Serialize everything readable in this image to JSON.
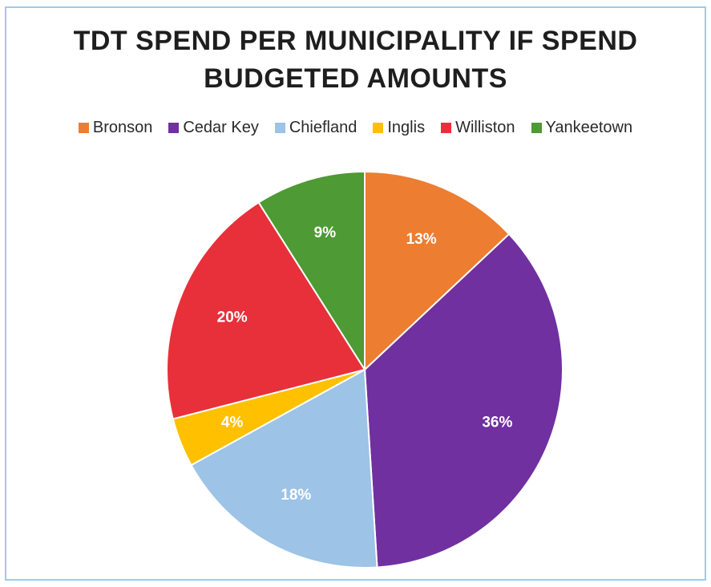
{
  "chart_data": {
    "type": "pie",
    "title_lines": [
      "TDT SPEND PER MUNICIPALITY IF SPEND",
      "BUDGETED AMOUNTS"
    ],
    "legend_position": "top",
    "slices": [
      {
        "label": "Bronson",
        "value": 13,
        "value_label": "13%",
        "color": "#ed7d31"
      },
      {
        "label": "Cedar Key",
        "value": 36,
        "value_label": "36%",
        "color": "#7030a0"
      },
      {
        "label": "Chiefland",
        "value": 18,
        "value_label": "18%",
        "color": "#9dc3e6"
      },
      {
        "label": "Inglis",
        "value": 4,
        "value_label": "4%",
        "color": "#ffc000"
      },
      {
        "label": "Williston",
        "value": 20,
        "value_label": "20%",
        "color": "#e8303a"
      },
      {
        "label": "Yankeetown",
        "value": 9,
        "value_label": "9%",
        "color": "#4e9a34"
      }
    ]
  }
}
